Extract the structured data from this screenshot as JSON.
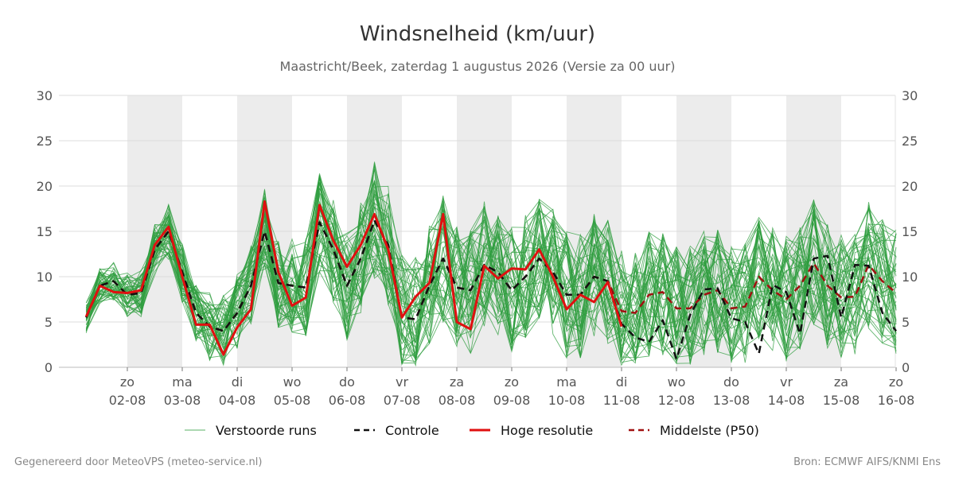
{
  "chart_data": {
    "type": "line",
    "title": "Windsnelheid (km/uur)",
    "subtitle": "Maastricht/Beek, zaterdag  1 augustus 2026 (Versie za 00 uur)",
    "ylim": [
      0,
      30
    ],
    "yticks": [
      0,
      5,
      10,
      15,
      20,
      25,
      30
    ],
    "xlim": [
      0.25,
      15.0
    ],
    "grid": true,
    "legend_position": "bottom",
    "day_ticks": [
      {
        "x": 1,
        "day": "zo",
        "date": "02-08"
      },
      {
        "x": 2,
        "day": "ma",
        "date": "03-08"
      },
      {
        "x": 3,
        "day": "di",
        "date": "04-08"
      },
      {
        "x": 4,
        "day": "wo",
        "date": "05-08"
      },
      {
        "x": 5,
        "day": "do",
        "date": "06-08"
      },
      {
        "x": 6,
        "day": "vr",
        "date": "07-08"
      },
      {
        "x": 7,
        "day": "za",
        "date": "08-08"
      },
      {
        "x": 8,
        "day": "zo",
        "date": "09-08"
      },
      {
        "x": 9,
        "day": "ma",
        "date": "10-08"
      },
      {
        "x": 10,
        "day": "di",
        "date": "11-08"
      },
      {
        "x": 11,
        "day": "wo",
        "date": "12-08"
      },
      {
        "x": 12,
        "day": "do",
        "date": "13-08"
      },
      {
        "x": 13,
        "day": "vr",
        "date": "14-08"
      },
      {
        "x": 14,
        "day": "za",
        "date": "15-08"
      },
      {
        "x": 15,
        "day": "zo",
        "date": "16-08"
      }
    ],
    "shaded_days": [
      [
        1,
        2
      ],
      [
        3,
        4
      ],
      [
        5,
        6
      ],
      [
        7,
        8
      ],
      [
        9,
        10
      ],
      [
        11,
        12
      ],
      [
        13,
        14
      ]
    ],
    "series": [
      {
        "name": "Hoge resolutie",
        "color": "#e01010",
        "style": "solid",
        "x": [
          0.25,
          0.5,
          0.75,
          1.0,
          1.25,
          1.5,
          1.75,
          2.0,
          2.25,
          2.5,
          2.75,
          3.0,
          3.25,
          3.5,
          3.75,
          4.0,
          4.25,
          4.5,
          4.75,
          5.0,
          5.25,
          5.5,
          5.75,
          6.0,
          6.25,
          6.5,
          6.75,
          7.0,
          7.25,
          7.5,
          7.75,
          8.0,
          8.25,
          8.5,
          8.75,
          9.0,
          9.25,
          9.5,
          9.75,
          10.0
        ],
        "values": [
          5.6,
          9.0,
          8.3,
          8.2,
          8.5,
          13.5,
          15.5,
          10.0,
          4.7,
          4.7,
          1.4,
          4.4,
          6.4,
          18.3,
          10.5,
          6.8,
          7.7,
          17.9,
          14.0,
          11.1,
          13.5,
          16.9,
          13.0,
          5.5,
          7.8,
          9.3,
          16.9,
          5.0,
          4.2,
          11.2,
          9.8,
          10.9,
          10.8,
          13.0,
          10.0,
          6.4,
          8.0,
          7.2,
          9.4,
          4.5
        ]
      },
      {
        "name": "Controle",
        "color": "#111111",
        "style": "dashed",
        "x": [
          0.25,
          0.5,
          0.75,
          1.0,
          1.25,
          1.5,
          1.75,
          2.0,
          2.25,
          2.5,
          2.75,
          3.0,
          3.25,
          3.5,
          3.75,
          4.0,
          4.25,
          4.5,
          4.75,
          5.0,
          5.25,
          5.5,
          5.75,
          6.0,
          6.25,
          6.5,
          6.75,
          7.0,
          7.25,
          7.5,
          7.75,
          8.0,
          8.25,
          8.5,
          8.75,
          9.0,
          9.25,
          9.5,
          9.75,
          10.0,
          10.25,
          10.5,
          10.75,
          11.0,
          11.25,
          11.5,
          11.75,
          12.0,
          12.25,
          12.5,
          12.75,
          13.0,
          13.25,
          13.5,
          13.75,
          14.0,
          14.25,
          14.5,
          14.75,
          15.0
        ],
        "values": [
          5.5,
          9.0,
          9.5,
          8.0,
          8.2,
          13.0,
          15.0,
          10.5,
          6.0,
          4.5,
          4.0,
          6.0,
          9.0,
          15.0,
          9.3,
          9.0,
          8.8,
          16.0,
          13.0,
          9.0,
          12.0,
          16.2,
          13.5,
          5.5,
          5.3,
          9.0,
          12.0,
          8.8,
          8.5,
          11.3,
          10.5,
          8.5,
          10.0,
          12.0,
          10.5,
          8.0,
          8.0,
          10.0,
          9.5,
          4.8,
          3.3,
          2.8,
          5.2,
          0.9,
          5.8,
          8.6,
          8.7,
          5.4,
          5.0,
          1.5,
          9.1,
          8.3,
          3.7,
          12.0,
          12.3,
          5.5,
          11.3,
          11.2,
          6.0,
          4.0
        ]
      },
      {
        "name": "Middelste (P50)",
        "color": "#a01010",
        "style": "dashed",
        "x": [
          0.25,
          0.5,
          0.75,
          1.0,
          1.25,
          1.5,
          1.75,
          2.0,
          2.25,
          2.5,
          2.75,
          3.0,
          3.25,
          3.5,
          3.75,
          4.0,
          4.25,
          4.5,
          4.75,
          5.0,
          5.25,
          5.5,
          5.75,
          6.0,
          6.25,
          6.5,
          6.75,
          7.0,
          7.25,
          7.5,
          7.75,
          8.0,
          8.25,
          8.5,
          8.75,
          9.0,
          9.25,
          9.5,
          9.75,
          10.0,
          10.25,
          10.5,
          10.75,
          11.0,
          11.25,
          11.5,
          11.75,
          12.0,
          12.25,
          12.5,
          12.75,
          13.0,
          13.25,
          13.5,
          13.75,
          14.0,
          14.25,
          14.5,
          14.75,
          15.0
        ],
        "values": [
          5.5,
          9.0,
          9.5,
          8.0,
          8.2,
          13.0,
          15.0,
          10.5,
          6.0,
          4.5,
          4.0,
          6.0,
          9.0,
          15.0,
          9.3,
          9.0,
          8.8,
          16.0,
          13.0,
          9.0,
          12.0,
          16.2,
          13.5,
          5.5,
          5.3,
          9.0,
          12.0,
          8.8,
          8.5,
          11.3,
          10.5,
          8.5,
          10.0,
          12.0,
          10.5,
          8.0,
          8.0,
          10.0,
          9.5,
          6.2,
          6.0,
          8.0,
          8.3,
          6.5,
          6.5,
          8.0,
          8.5,
          6.5,
          6.7,
          10.0,
          8.5,
          7.5,
          9.0,
          11.5,
          9.0,
          7.7,
          7.8,
          11.3,
          9.5,
          8.2
        ]
      }
    ],
    "ensemble": {
      "name": "Verstoorde runs",
      "color": "#2f9e3f",
      "members": 50
    }
  },
  "legend": {
    "items": [
      {
        "label": "Verstoorde runs",
        "color": "#2f9e3f",
        "style": "thin"
      },
      {
        "label": "Controle",
        "color": "#111111",
        "style": "dashed"
      },
      {
        "label": "Hoge resolutie",
        "color": "#e01010",
        "style": "solid"
      },
      {
        "label": "Middelste (P50)",
        "color": "#a01010",
        "style": "dashed"
      }
    ]
  },
  "footer": {
    "left": "Gegenereerd door MeteoVPS (meteo-service.nl)",
    "right": "Bron: ECMWF AIFS/KNMI Ens"
  }
}
